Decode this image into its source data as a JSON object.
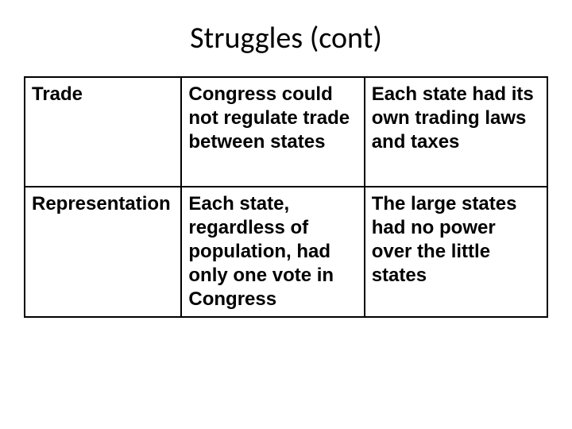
{
  "title": "Struggles (cont)",
  "table": {
    "rows": [
      {
        "col1": "Trade",
        "col2": "Congress could not regulate trade between states",
        "col3": "Each state had its own trading laws and taxes"
      },
      {
        "col1": "Representation",
        "col2": "Each state, regardless of population, had only one vote in Congress",
        "col3": "The large states had no power over the little states"
      }
    ]
  },
  "styling": {
    "background_color": "#ffffff",
    "border_color": "#000000",
    "border_width": 2,
    "text_color": "#000000",
    "title_font_family": "Calibri",
    "title_fontsize": 38,
    "cell_font_family": "Comic Sans MS",
    "cell_fontsize": 24,
    "cell_font_weight": "bold"
  }
}
